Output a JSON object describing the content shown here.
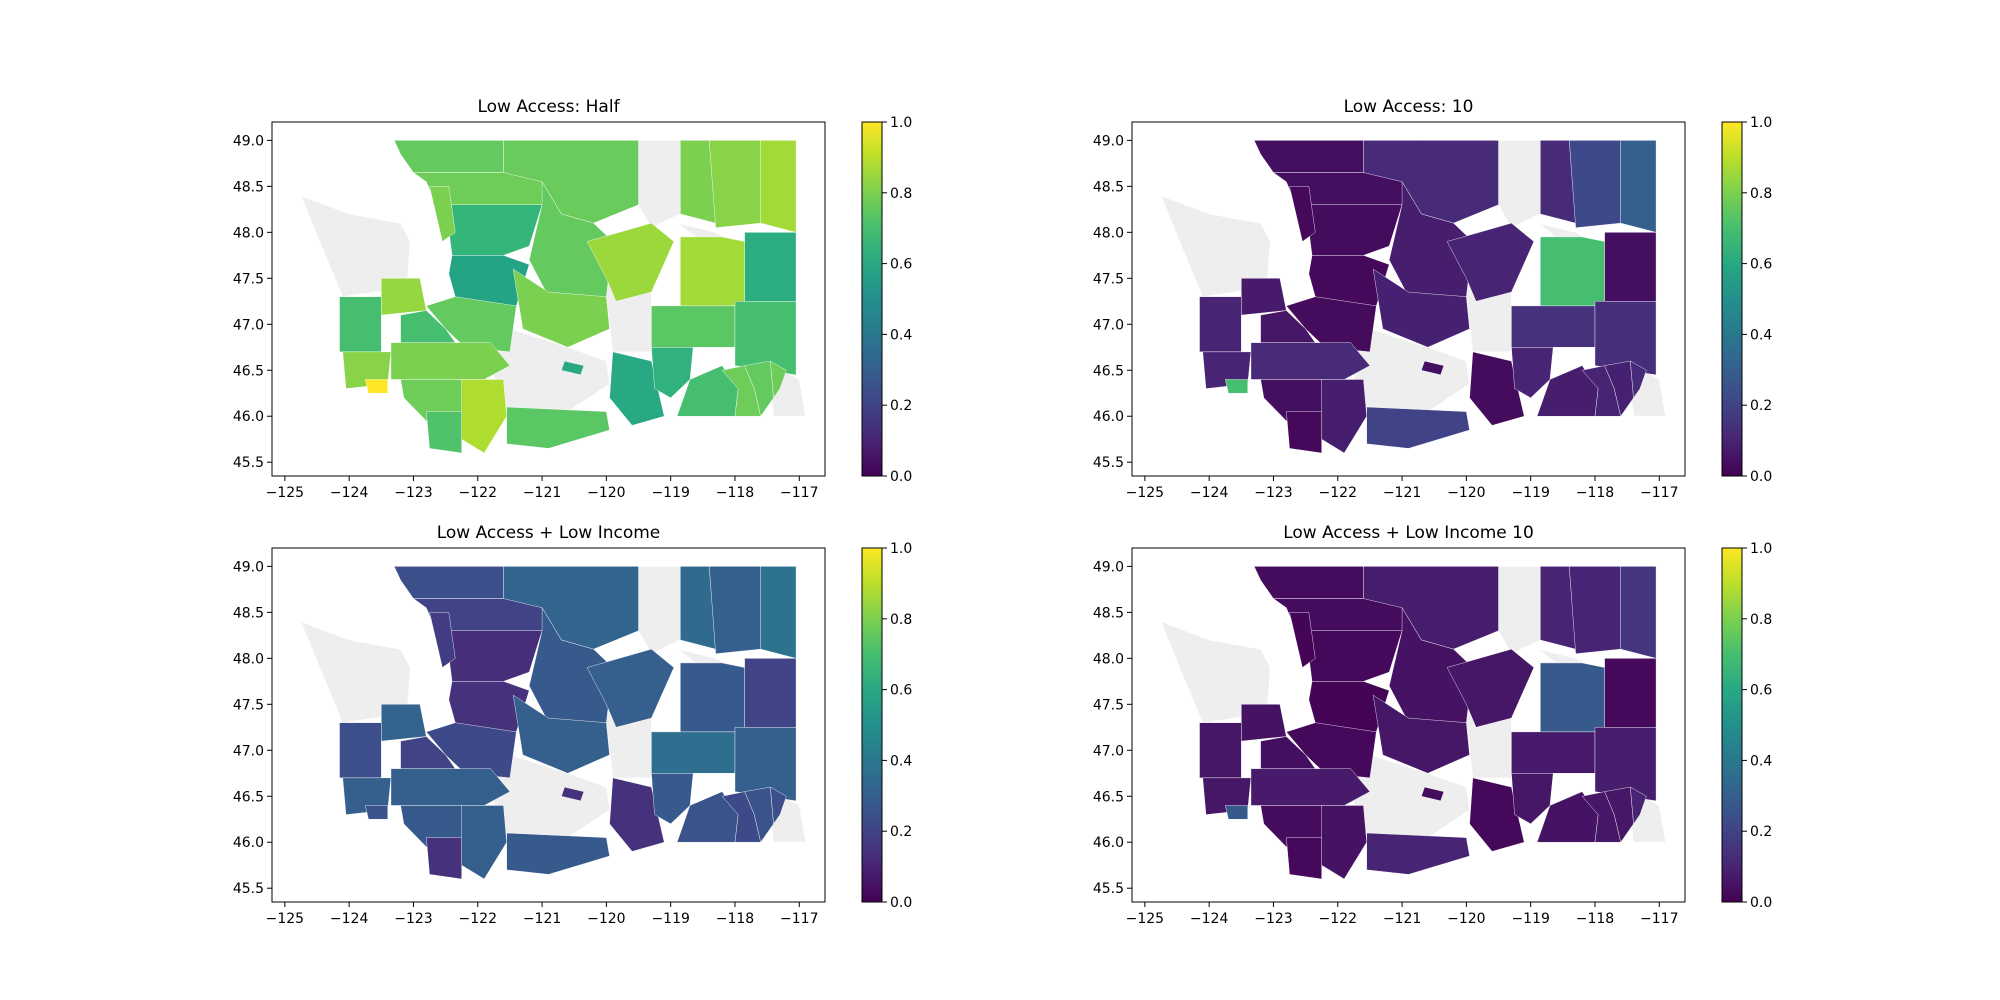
{
  "chart_data": [
    {
      "type": "heatmap",
      "title": "Low Access: Half",
      "xlabel": "",
      "ylabel": "",
      "xlim": [
        -125.2,
        -116.6
      ],
      "ylim": [
        45.35,
        49.2
      ],
      "xticks": [
        -125,
        -124,
        -123,
        -122,
        -121,
        -120,
        -119,
        -118,
        -117
      ],
      "yticks": [
        45.5,
        46.0,
        46.5,
        47.0,
        47.5,
        48.0,
        48.5,
        49.0
      ],
      "colorbar": {
        "range": [
          0,
          1
        ],
        "ticks": [
          0.0,
          0.2,
          0.4,
          0.6,
          0.8,
          1.0
        ]
      },
      "regions": [
        {
          "id": "whatcom",
          "value": 0.76
        },
        {
          "id": "okanogan",
          "value": 0.77
        },
        {
          "id": "ferry",
          "value": 0.8
        },
        {
          "id": "stevens",
          "value": 0.82
        },
        {
          "id": "pend-oreille",
          "value": 0.86
        },
        {
          "id": "skagit",
          "value": 0.78
        },
        {
          "id": "snohomish",
          "value": 0.66
        },
        {
          "id": "chelan",
          "value": 0.76
        },
        {
          "id": "king",
          "value": 0.58
        },
        {
          "id": "kittitas",
          "value": 0.8
        },
        {
          "id": "douglas",
          "value": 0.85
        },
        {
          "id": "lincoln",
          "value": 0.86
        },
        {
          "id": "spokane",
          "value": 0.62
        },
        {
          "id": "island",
          "value": 0.8
        },
        {
          "id": "mason",
          "value": 0.84
        },
        {
          "id": "grays-harbor",
          "value": 0.7
        },
        {
          "id": "pierce",
          "value": 0.76
        },
        {
          "id": "thurston",
          "value": 0.7
        },
        {
          "id": "pacific",
          "value": 0.82
        },
        {
          "id": "wahkiakum",
          "value": 1.0
        },
        {
          "id": "lewis",
          "value": 0.8
        },
        {
          "id": "cowlitz",
          "value": 0.78
        },
        {
          "id": "skamania",
          "value": 0.88
        },
        {
          "id": "clark",
          "value": 0.72
        },
        {
          "id": "klickitat",
          "value": 0.74
        },
        {
          "id": "yakima-part",
          "value": 0.6
        },
        {
          "id": "benton",
          "value": 0.6
        },
        {
          "id": "franklin",
          "value": 0.64
        },
        {
          "id": "adams",
          "value": 0.74
        },
        {
          "id": "whitman",
          "value": 0.7
        },
        {
          "id": "walla-walla",
          "value": 0.7
        },
        {
          "id": "columbia",
          "value": 0.78
        },
        {
          "id": "garfield",
          "value": 0.76
        },
        {
          "id": "asotin",
          "value": 0.78
        }
      ]
    },
    {
      "type": "heatmap",
      "title": "Low Access: 10",
      "xlabel": "",
      "ylabel": "",
      "xlim": [
        -125.2,
        -116.6
      ],
      "ylim": [
        45.35,
        49.2
      ],
      "xticks": [
        -125,
        -124,
        -123,
        -122,
        -121,
        -120,
        -119,
        -118,
        -117
      ],
      "yticks": [
        45.5,
        46.0,
        46.5,
        47.0,
        47.5,
        48.0,
        48.5,
        49.0
      ],
      "colorbar": {
        "range": [
          0,
          1
        ],
        "ticks": [
          0.0,
          0.2,
          0.4,
          0.6,
          0.8,
          1.0
        ]
      },
      "regions": [
        {
          "id": "whatcom",
          "value": 0.04
        },
        {
          "id": "okanogan",
          "value": 0.12
        },
        {
          "id": "ferry",
          "value": 0.12
        },
        {
          "id": "stevens",
          "value": 0.22
        },
        {
          "id": "pend-oreille",
          "value": 0.3
        },
        {
          "id": "skagit",
          "value": 0.04
        },
        {
          "id": "snohomish",
          "value": 0.03
        },
        {
          "id": "chelan",
          "value": 0.08
        },
        {
          "id": "king",
          "value": 0.02
        },
        {
          "id": "kittitas",
          "value": 0.09
        },
        {
          "id": "douglas",
          "value": 0.1
        },
        {
          "id": "lincoln",
          "value": 0.7
        },
        {
          "id": "spokane",
          "value": 0.04
        },
        {
          "id": "island",
          "value": 0.02
        },
        {
          "id": "mason",
          "value": 0.07
        },
        {
          "id": "grays-harbor",
          "value": 0.1
        },
        {
          "id": "pierce",
          "value": 0.03
        },
        {
          "id": "thurston",
          "value": 0.06
        },
        {
          "id": "pacific",
          "value": 0.1
        },
        {
          "id": "wahkiakum",
          "value": 0.7
        },
        {
          "id": "lewis",
          "value": 0.12
        },
        {
          "id": "cowlitz",
          "value": 0.04
        },
        {
          "id": "skamania",
          "value": 0.08
        },
        {
          "id": "clark",
          "value": 0.02
        },
        {
          "id": "klickitat",
          "value": 0.2
        },
        {
          "id": "yakima-part",
          "value": 0.04
        },
        {
          "id": "benton",
          "value": 0.03
        },
        {
          "id": "franklin",
          "value": 0.1
        },
        {
          "id": "adams",
          "value": 0.14
        },
        {
          "id": "whitman",
          "value": 0.13
        },
        {
          "id": "walla-walla",
          "value": 0.08
        },
        {
          "id": "columbia",
          "value": 0.1
        },
        {
          "id": "garfield",
          "value": 0.09
        },
        {
          "id": "asotin",
          "value": 0.12
        }
      ]
    },
    {
      "type": "heatmap",
      "title": "Low Access + Low Income",
      "xlabel": "",
      "ylabel": "",
      "xlim": [
        -125.2,
        -116.6
      ],
      "ylim": [
        45.35,
        49.2
      ],
      "xticks": [
        -125,
        -124,
        -123,
        -122,
        -121,
        -120,
        -119,
        -118,
        -117
      ],
      "yticks": [
        45.5,
        46.0,
        46.5,
        47.0,
        47.5,
        48.0,
        48.5,
        49.0
      ],
      "colorbar": {
        "range": [
          0,
          1
        ],
        "ticks": [
          0.0,
          0.2,
          0.4,
          0.6,
          0.8,
          1.0
        ]
      },
      "regions": [
        {
          "id": "whatcom",
          "value": 0.24
        },
        {
          "id": "okanogan",
          "value": 0.32
        },
        {
          "id": "ferry",
          "value": 0.34
        },
        {
          "id": "stevens",
          "value": 0.3
        },
        {
          "id": "pend-oreille",
          "value": 0.38
        },
        {
          "id": "skagit",
          "value": 0.2
        },
        {
          "id": "snohomish",
          "value": 0.13
        },
        {
          "id": "chelan",
          "value": 0.28
        },
        {
          "id": "king",
          "value": 0.14
        },
        {
          "id": "kittitas",
          "value": 0.3
        },
        {
          "id": "douglas",
          "value": 0.3
        },
        {
          "id": "lincoln",
          "value": 0.28
        },
        {
          "id": "spokane",
          "value": 0.2
        },
        {
          "id": "island",
          "value": 0.18
        },
        {
          "id": "mason",
          "value": 0.32
        },
        {
          "id": "grays-harbor",
          "value": 0.24
        },
        {
          "id": "pierce",
          "value": 0.22
        },
        {
          "id": "thurston",
          "value": 0.2
        },
        {
          "id": "pacific",
          "value": 0.3
        },
        {
          "id": "wahkiakum",
          "value": 0.26
        },
        {
          "id": "lewis",
          "value": 0.3
        },
        {
          "id": "cowlitz",
          "value": 0.28
        },
        {
          "id": "skamania",
          "value": 0.3
        },
        {
          "id": "clark",
          "value": 0.14
        },
        {
          "id": "klickitat",
          "value": 0.28
        },
        {
          "id": "yakima-part",
          "value": 0.14
        },
        {
          "id": "benton",
          "value": 0.14
        },
        {
          "id": "franklin",
          "value": 0.28
        },
        {
          "id": "adams",
          "value": 0.36
        },
        {
          "id": "whitman",
          "value": 0.3
        },
        {
          "id": "walla-walla",
          "value": 0.26
        },
        {
          "id": "columbia",
          "value": 0.22
        },
        {
          "id": "garfield",
          "value": 0.26
        },
        {
          "id": "asotin",
          "value": 0.24
        }
      ]
    },
    {
      "type": "heatmap",
      "title": "Low Access + Low Income 10",
      "xlabel": "",
      "ylabel": "",
      "xlim": [
        -125.2,
        -116.6
      ],
      "ylim": [
        45.35,
        49.2
      ],
      "xticks": [
        -125,
        -124,
        -123,
        -122,
        -121,
        -120,
        -119,
        -118,
        -117
      ],
      "yticks": [
        45.5,
        46.0,
        46.5,
        47.0,
        47.5,
        48.0,
        48.5,
        49.0
      ],
      "colorbar": {
        "range": [
          0,
          1
        ],
        "ticks": [
          0.0,
          0.2,
          0.4,
          0.6,
          0.8,
          1.0
        ]
      },
      "regions": [
        {
          "id": "whatcom",
          "value": 0.03
        },
        {
          "id": "okanogan",
          "value": 0.08
        },
        {
          "id": "ferry",
          "value": 0.1
        },
        {
          "id": "stevens",
          "value": 0.1
        },
        {
          "id": "pend-oreille",
          "value": 0.15
        },
        {
          "id": "skagit",
          "value": 0.03
        },
        {
          "id": "snohomish",
          "value": 0.02
        },
        {
          "id": "chelan",
          "value": 0.05
        },
        {
          "id": "king",
          "value": 0.01
        },
        {
          "id": "kittitas",
          "value": 0.06
        },
        {
          "id": "douglas",
          "value": 0.06
        },
        {
          "id": "lincoln",
          "value": 0.28
        },
        {
          "id": "spokane",
          "value": 0.02
        },
        {
          "id": "island",
          "value": 0.01
        },
        {
          "id": "mason",
          "value": 0.05
        },
        {
          "id": "grays-harbor",
          "value": 0.06
        },
        {
          "id": "pierce",
          "value": 0.02
        },
        {
          "id": "thurston",
          "value": 0.04
        },
        {
          "id": "pacific",
          "value": 0.06
        },
        {
          "id": "wahkiakum",
          "value": 0.28
        },
        {
          "id": "lewis",
          "value": 0.07
        },
        {
          "id": "cowlitz",
          "value": 0.03
        },
        {
          "id": "skamania",
          "value": 0.05
        },
        {
          "id": "clark",
          "value": 0.02
        },
        {
          "id": "klickitat",
          "value": 0.1
        },
        {
          "id": "yakima-part",
          "value": 0.03
        },
        {
          "id": "benton",
          "value": 0.02
        },
        {
          "id": "franklin",
          "value": 0.06
        },
        {
          "id": "adams",
          "value": 0.07
        },
        {
          "id": "whitman",
          "value": 0.08
        },
        {
          "id": "walla-walla",
          "value": 0.05
        },
        {
          "id": "columbia",
          "value": 0.06
        },
        {
          "id": "garfield",
          "value": 0.06
        },
        {
          "id": "asotin",
          "value": 0.1
        }
      ]
    }
  ],
  "colors": {
    "nodata": "#eeeeee",
    "colormap": "viridis"
  }
}
